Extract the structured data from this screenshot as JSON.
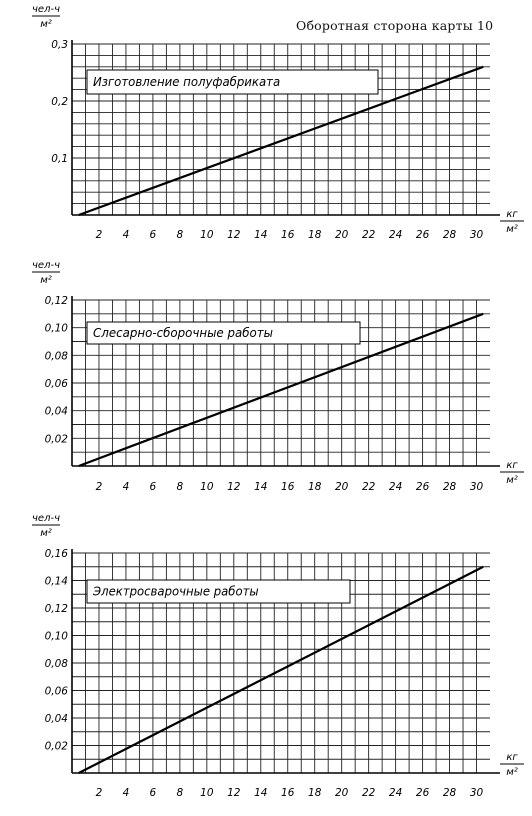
{
  "header": {
    "text": "Оборотная сторона карты 10"
  },
  "units": {
    "y_num": "чел-ч",
    "y_den": "м²",
    "x_num": "кг",
    "x_den": "м²"
  },
  "chart_data": [
    {
      "type": "line",
      "title": "Изготовление полуфабриката",
      "xlabel": "кг/м²",
      "ylabel": "чел-ч/м²",
      "xlim": [
        0,
        31
      ],
      "ylim": [
        0,
        0.3
      ],
      "x_ticks": [
        "2",
        "4",
        "6",
        "8",
        "10",
        "12",
        "14",
        "16",
        "18",
        "20",
        "22",
        "24",
        "26",
        "28",
        "30"
      ],
      "y_ticks": [
        {
          "v": 0.1,
          "label": "0,1"
        },
        {
          "v": 0.2,
          "label": "0,2"
        },
        {
          "v": 0.3,
          "label": "0,3"
        }
      ],
      "series": [
        {
          "x": [
            0.5,
            30.5
          ],
          "y": [
            0.0,
            0.26
          ]
        }
      ],
      "grid": true
    },
    {
      "type": "line",
      "title": "Слесарно-сборочные работы",
      "xlabel": "кг/м²",
      "ylabel": "чел-ч/м²",
      "xlim": [
        0,
        31
      ],
      "ylim": [
        0,
        0.12
      ],
      "x_ticks": [
        "2",
        "4",
        "6",
        "8",
        "10",
        "12",
        "14",
        "16",
        "18",
        "20",
        "22",
        "24",
        "26",
        "28",
        "30"
      ],
      "y_ticks": [
        {
          "v": 0.02,
          "label": "0,02"
        },
        {
          "v": 0.04,
          "label": "0,04"
        },
        {
          "v": 0.06,
          "label": "0,06"
        },
        {
          "v": 0.08,
          "label": "0,08"
        },
        {
          "v": 0.1,
          "label": "0,10"
        },
        {
          "v": 0.12,
          "label": "0,12"
        }
      ],
      "series": [
        {
          "x": [
            0.5,
            30.5
          ],
          "y": [
            0.0,
            0.11
          ]
        }
      ],
      "grid": true
    },
    {
      "type": "line",
      "title": "Электросварочные работы",
      "xlabel": "кг/м²",
      "ylabel": "чел-ч/м²",
      "xlim": [
        0,
        31
      ],
      "ylim": [
        0,
        0.16
      ],
      "x_ticks": [
        "2",
        "4",
        "6",
        "8",
        "10",
        "12",
        "14",
        "16",
        "18",
        "20",
        "22",
        "24",
        "26",
        "28",
        "30"
      ],
      "y_ticks": [
        {
          "v": 0.02,
          "label": "0,02"
        },
        {
          "v": 0.04,
          "label": "0,04"
        },
        {
          "v": 0.06,
          "label": "0,06"
        },
        {
          "v": 0.08,
          "label": "0,08"
        },
        {
          "v": 0.1,
          "label": "0,10"
        },
        {
          "v": 0.12,
          "label": "0,12"
        },
        {
          "v": 0.14,
          "label": "0,14"
        },
        {
          "v": 0.16,
          "label": "0,16"
        }
      ],
      "series": [
        {
          "x": [
            0.5,
            30.5
          ],
          "y": [
            0.0,
            0.15
          ]
        }
      ],
      "grid": true
    }
  ]
}
